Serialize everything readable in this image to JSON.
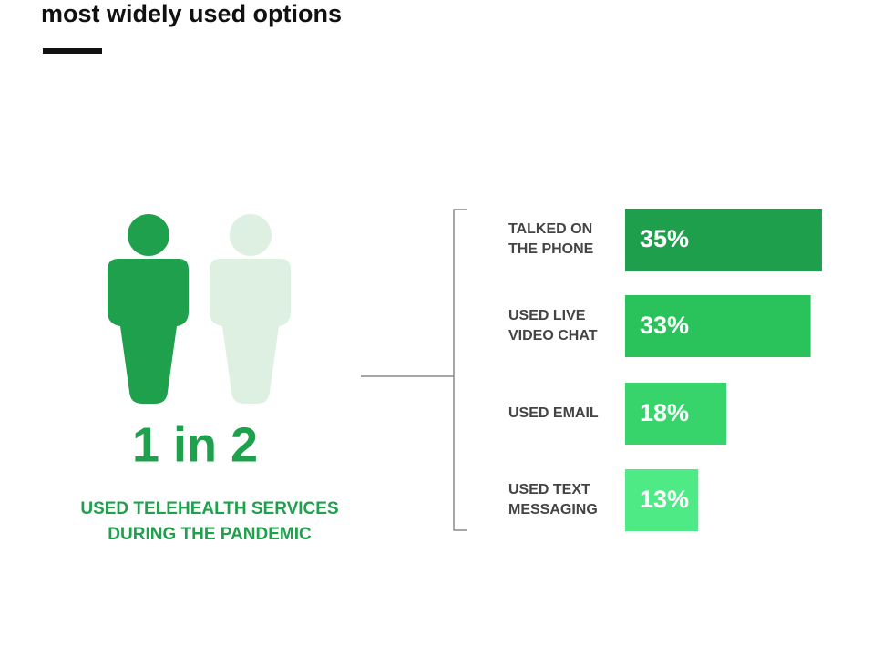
{
  "header": {
    "title": "most widely used options"
  },
  "stat": {
    "value": "1 in 2",
    "caption": [
      "USED TELEHEALTH SERVICES",
      "DURING THE PANDEMIC"
    ]
  },
  "chart_data": {
    "type": "bar",
    "orientation": "horizontal",
    "categories": [
      "TALKED ON\nTHE PHONE",
      "USED LIVE\nVIDEO CHAT",
      "USED EMAIL",
      "USED TEXT\nMESSAGING"
    ],
    "values": [
      35,
      33,
      18,
      13
    ],
    "value_labels": [
      "35%",
      "33%",
      "18%",
      "13%"
    ],
    "colors": [
      "#1e9f4c",
      "#2ac25a",
      "#36d46b",
      "#4eea86"
    ]
  }
}
